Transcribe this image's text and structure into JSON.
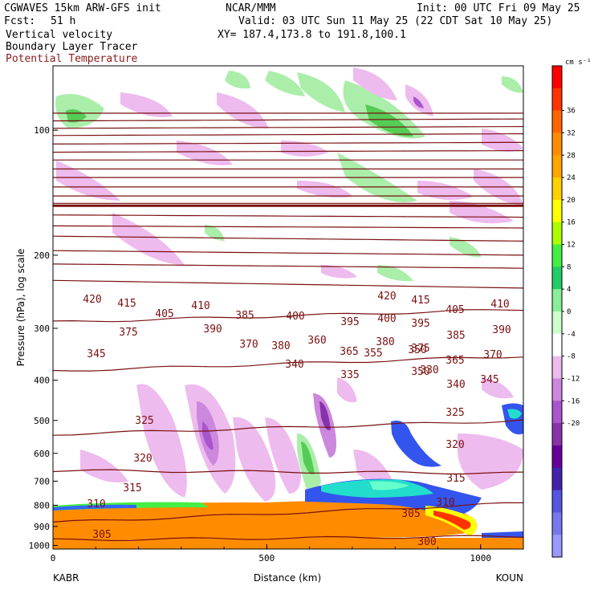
{
  "header": {
    "model": "CGWAVES 15km ARW-GFS init",
    "org": "NCAR/MMM",
    "init": "Init: 00 UTC Fri 09 May 25",
    "fcst_label": "Fcst:",
    "fcst_value": "51 h",
    "valid": "Valid: 03 UTC Sun 11 May 25 (22 CDT Sat 10 May 25)",
    "field1": "Vertical velocity",
    "field2": "Boundary Layer Tracer",
    "field3": "Potential Temperature",
    "xy": "XY= 187.4,173.8 to 191.8,100.1"
  },
  "colors": {
    "theta_line": "#7a1010",
    "title_field3": "#8b1a1a"
  },
  "chart_data": {
    "type": "cross-section",
    "xlabel": "Distance (km)",
    "ylabel": "Pressure (hPa), log scale",
    "x_range": [
      0,
      1100
    ],
    "y_range_hpa": [
      1020,
      70
    ],
    "y_log_scale": true,
    "x_ticks": [
      0,
      500,
      1000
    ],
    "y_ticks": [
      100,
      200,
      300,
      400,
      500,
      600,
      700,
      800,
      900,
      1000
    ],
    "left_endpoint": "KABR",
    "right_endpoint": "KOUN",
    "colorbar": {
      "unit": "cm s⁻¹",
      "levels": [
        36,
        32,
        28,
        24,
        20,
        16,
        12,
        8,
        4,
        0,
        -4,
        -8,
        -12,
        -16,
        -20
      ],
      "colors": [
        "#ff0000",
        "#ff3300",
        "#ff6600",
        "#ff8c00",
        "#ffa500",
        "#ffd000",
        "#ffff00",
        "#aaff00",
        "#44ee44",
        "#22cc66",
        "#88ee99",
        "#ccffcc",
        "#ffffff",
        "#eebbee",
        "#cc88dd",
        "#aa55cc",
        "#8833aa",
        "#660099",
        "#4422aa",
        "#5555dd",
        "#7777ee",
        "#9999ff"
      ]
    },
    "theta_labels_upper": [
      "420",
      "415",
      "405",
      "410",
      "400",
      "395",
      "385",
      "390",
      "375",
      "370",
      "380",
      "360",
      "365",
      "355",
      "350",
      "345",
      "340",
      "335",
      "330"
    ],
    "theta_labels_lower": [
      "325",
      "320",
      "315",
      "310",
      "305",
      "300"
    ],
    "isentropes": [
      {
        "theta": 420,
        "p": [
          91,
          91
        ],
        "x": [
          0,
          1100
        ]
      },
      {
        "theta": 415,
        "p": [
          95,
          94
        ],
        "x": [
          0,
          1100
        ]
      },
      {
        "theta": 410,
        "p": [
          99,
          98
        ],
        "x": [
          0,
          1100
        ]
      },
      {
        "theta": 405,
        "p": [
          103,
          102
        ],
        "x": [
          0,
          1100
        ]
      },
      {
        "theta": 400,
        "p": [
          108,
          107
        ],
        "x": [
          0,
          1100
        ]
      },
      {
        "theta": 395,
        "p": [
          113,
          112
        ],
        "x": [
          0,
          1100
        ]
      },
      {
        "theta": 390,
        "p": [
          118,
          118
        ],
        "x": [
          0,
          1100
        ]
      },
      {
        "theta": 385,
        "p": [
          124,
          124
        ],
        "x": [
          0,
          1100
        ]
      },
      {
        "theta": 380,
        "p": [
          130,
          130
        ],
        "x": [
          0,
          1100
        ]
      },
      {
        "theta": 375,
        "p": [
          137,
          137
        ],
        "x": [
          0,
          1100
        ]
      },
      {
        "theta": 370,
        "p": [
          144,
          144
        ],
        "x": [
          0,
          1100
        ]
      },
      {
        "theta": 365,
        "p": [
          150,
          150
        ],
        "x": [
          0,
          1100
        ]
      },
      {
        "theta": 360,
        "p": [
          152,
          152
        ],
        "x": [
          0,
          1100
        ]
      },
      {
        "theta": 355,
        "p": [
          160,
          162
        ],
        "x": [
          0,
          1100
        ]
      },
      {
        "theta": 350,
        "p": [
          170,
          172
        ],
        "x": [
          0,
          1100
        ]
      },
      {
        "theta": 345,
        "p": [
          180,
          185
        ],
        "x": [
          0,
          1100
        ]
      },
      {
        "theta": 340,
        "p": [
          195,
          200
        ],
        "x": [
          0,
          1100
        ]
      },
      {
        "theta": 335,
        "p": [
          210,
          215
        ],
        "x": [
          0,
          1100
        ]
      },
      {
        "theta": 330,
        "p": [
          230,
          240
        ],
        "x": [
          0,
          1100
        ]
      },
      {
        "theta": 325,
        "p": [
          290,
          270
        ],
        "x": [
          0,
          1100
        ]
      },
      {
        "theta": 320,
        "p": [
          380,
          350
        ],
        "x": [
          0,
          1100
        ]
      },
      {
        "theta": 315,
        "p": [
          540,
          500
        ],
        "x": [
          0,
          1100
        ]
      },
      {
        "theta": 310,
        "p": [
          660,
          670
        ],
        "x": [
          0,
          1100
        ]
      },
      {
        "theta": 305,
        "p": [
          880,
          790
        ],
        "x": [
          0,
          1100
        ]
      },
      {
        "theta": 300,
        "p": [
          970,
          950
        ],
        "x": [
          0,
          1100
        ]
      }
    ]
  }
}
